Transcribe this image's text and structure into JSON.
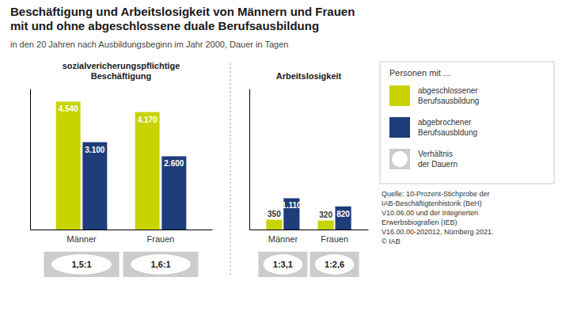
{
  "title": "Beschäftigung und Arbeitslosigkeit von Männern und Frauen\nmit und ohne abgeschlossene duale Berufsausbildung",
  "subtitle": "in den 20 Jahren nach Ausbildungsbeginn im Jahr 2000, Dauer in Tagen",
  "legend": "upper right",
  "legend_title": "Personen mit ...",
  "ratio_legend": {
    "name": "Verhältnis\nder Dauern",
    "color": "#cccccc"
  },
  "source": "Quelle: 10-Prozent-Stichprobe der\nIAB-Beschäftigtenhistorik (BeH)\nV10.06.00 und der Integrierten\nErwerbsbiografien (IEB)\nV16.00.00-202012, Nürnberg 2021.\n© IAB",
  "chart_data": [
    {
      "type": "bar",
      "title": "sozialvericherungspflichtige\nBeschäftigung",
      "categories": [
        "Männer",
        "Frauen"
      ],
      "series": [
        {
          "name": "abgeschlossener\nBerufsausbildung",
          "color": "#c8d400",
          "values": [
            4540,
            4170
          ],
          "value_labels": [
            "4.540",
            "4.170"
          ]
        },
        {
          "name": "abgebrochener\nBerufsausbldung",
          "color": "#1f3d7a",
          "values": [
            3100,
            2600
          ],
          "value_labels": [
            "3.100",
            "2.600"
          ]
        }
      ],
      "ylim": [
        0,
        5000
      ],
      "data_labels": true,
      "tick_labels": "x",
      "grid": false,
      "annotations": [
        "1,5:1",
        "1,6:1"
      ]
    },
    {
      "type": "bar",
      "title": "Arbeitslosigkeit",
      "categories": [
        "Männer",
        "Frauen"
      ],
      "series": [
        {
          "color": "#c8d400",
          "values": [
            350,
            320
          ],
          "value_labels": [
            "350",
            "320"
          ]
        },
        {
          "color": "#1f3d7a",
          "values": [
            1110,
            820
          ],
          "value_labels": [
            "1.110",
            "820"
          ]
        }
      ],
      "ylim": [
        0,
        5000
      ],
      "data_labels": true,
      "tick_labels": "x",
      "grid": false,
      "annotations": [
        "1:3,1",
        "1:2,6"
      ]
    }
  ]
}
